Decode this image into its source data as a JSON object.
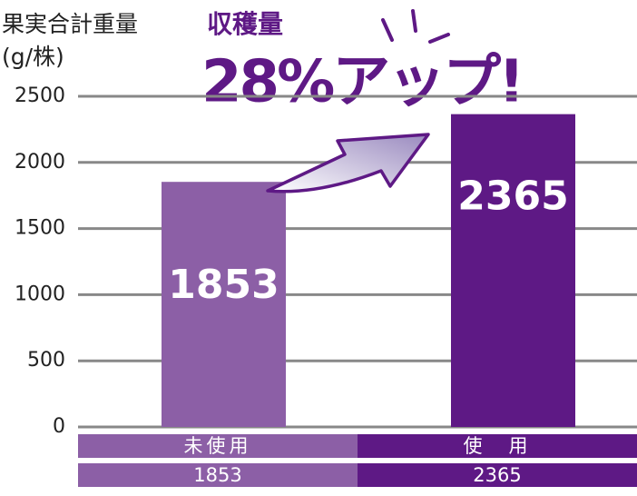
{
  "chart_data": {
    "type": "bar",
    "y_label": "果実合計重量",
    "y_unit": "(g/株)",
    "annotation_title": "収穫量",
    "annotation": "28%アップ!",
    "categories": [
      "未使用",
      "使　用"
    ],
    "values": [
      1853,
      2365
    ],
    "colors": [
      "#8c5fa6",
      "#5e1985"
    ],
    "annotation_color": "#5e1985",
    "ylim": [
      0,
      2500
    ],
    "yticks": [
      0,
      500,
      1000,
      1500,
      2000,
      2500
    ],
    "grid": true
  }
}
